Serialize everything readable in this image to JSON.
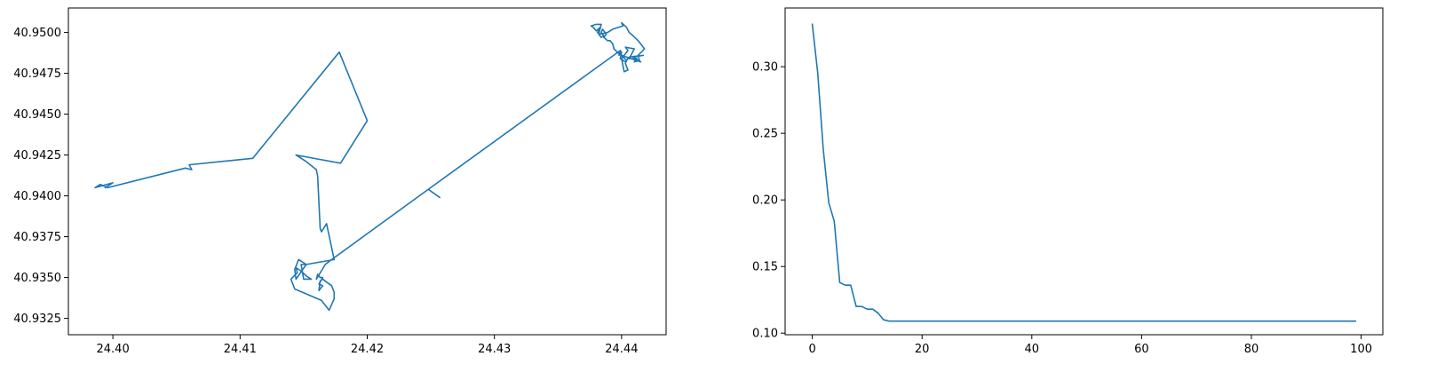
{
  "chart_data": [
    {
      "type": "line",
      "color": "#1f77b4",
      "xlim": [
        24.3965,
        24.4435
      ],
      "ylim": [
        40.9315,
        40.9515
      ],
      "xticks": [
        24.4,
        24.41,
        24.42,
        24.43,
        24.44
      ],
      "xtick_labels": [
        "24.40",
        "24.41",
        "24.42",
        "24.43",
        "24.44"
      ],
      "yticks": [
        40.9325,
        40.935,
        40.9375,
        40.94,
        40.9425,
        40.945,
        40.9475,
        40.95
      ],
      "ytick_labels": [
        "40.9325",
        "40.9350",
        "40.9375",
        "40.9400",
        "40.9425",
        "40.9450",
        "40.9475",
        "40.9500"
      ],
      "x": [
        24.4257,
        24.4248,
        24.4399,
        24.44,
        24.4415,
        24.4411,
        24.4406,
        24.441,
        24.4403,
        24.4405,
        24.44,
        24.4402,
        24.4405,
        24.4403,
        24.4404,
        24.4398,
        24.4394,
        24.4393,
        24.4391,
        24.4389,
        24.4386,
        24.4388,
        24.4385,
        24.4384,
        24.4386,
        24.4384,
        24.4382,
        24.4384,
        24.438,
        24.4376,
        24.4378,
        24.438,
        24.4383,
        24.4381,
        24.4383,
        24.4389,
        24.4393,
        24.4401,
        24.44,
        24.4404,
        24.4406,
        24.4409,
        24.4413,
        24.4418,
        24.4413,
        24.4414,
        24.441,
        24.4412,
        24.4409,
        24.4417,
        24.4406,
        24.4403,
        24.4399,
        24.44,
        24.4398,
        24.4399,
        24.4248,
        24.4172,
        24.4172,
        24.4167,
        24.416,
        24.4161,
        24.4163,
        24.4165,
        24.4162,
        24.4165,
        24.4162,
        24.4163,
        24.4165,
        24.4172,
        24.4174,
        24.4174,
        24.417,
        24.4164,
        24.4152,
        24.4143,
        24.414,
        24.4145,
        24.4144,
        24.4148,
        24.4152,
        24.4156,
        24.415,
        24.4148,
        24.4152,
        24.4146,
        24.4143,
        24.4144,
        24.4152,
        24.4174,
        24.4168,
        24.4164,
        24.4163,
        24.4161,
        24.416,
        24.4152,
        24.4144,
        24.4179,
        24.42,
        24.4178,
        24.411,
        24.406,
        24.4062,
        24.4057,
        24.3996,
        24.399,
        24.3986,
        24.4,
        24.3994
      ],
      "y": [
        40.9399,
        40.9404,
        40.9489,
        40.9486,
        40.9482,
        40.9484,
        40.9484,
        40.949,
        40.9491,
        40.9489,
        40.9484,
        40.9476,
        40.9477,
        40.9481,
        40.9483,
        40.9487,
        40.949,
        40.9493,
        40.9495,
        40.9495,
        40.9497,
        40.9499,
        40.9502,
        40.95,
        40.9498,
        40.9497,
        40.9499,
        40.9505,
        40.9505,
        40.9504,
        40.9503,
        40.9501,
        40.9503,
        40.95,
        40.9499,
        40.95,
        40.9502,
        40.9504,
        40.9506,
        40.9503,
        40.95,
        40.9498,
        40.9495,
        40.949,
        40.9486,
        40.9483,
        40.9482,
        40.9484,
        40.9485,
        40.9486,
        40.9485,
        40.9482,
        40.9484,
        40.9488,
        40.9486,
        40.9489,
        40.9404,
        40.9361,
        40.9361,
        40.9358,
        40.9349,
        40.9352,
        40.935,
        40.935,
        40.9346,
        40.9345,
        40.9342,
        40.9348,
        40.9349,
        40.9345,
        40.9341,
        40.9337,
        40.933,
        40.9336,
        40.934,
        40.9343,
        40.9349,
        40.9353,
        40.9356,
        40.9354,
        40.9351,
        40.9349,
        40.9349,
        40.9358,
        40.9358,
        40.9361,
        40.9355,
        40.9349,
        40.9358,
        40.9361,
        40.9383,
        40.9378,
        40.938,
        40.9412,
        40.9416,
        40.9421,
        40.9425,
        40.942,
        40.9446,
        40.9488,
        40.9423,
        40.9419,
        40.9416,
        40.9417,
        40.9405,
        40.9407,
        40.9405,
        40.9408,
        40.9405
      ]
    },
    {
      "type": "line",
      "color": "#1f77b4",
      "xlim": [
        -4.95,
        103.95
      ],
      "ylim": [
        0.0988,
        0.3441
      ],
      "xticks": [
        0,
        20,
        40,
        60,
        80,
        100
      ],
      "xtick_labels": [
        "0",
        "20",
        "40",
        "60",
        "80",
        "100"
      ],
      "yticks": [
        0.1,
        0.15,
        0.2,
        0.25,
        0.3
      ],
      "ytick_labels": [
        "0.10",
        "0.15",
        "0.20",
        "0.25",
        "0.30"
      ],
      "x": [
        0,
        1,
        2,
        3,
        4,
        5,
        6,
        7,
        8,
        9,
        10,
        11,
        12,
        13,
        14,
        15,
        20,
        30,
        40,
        50,
        60,
        70,
        80,
        90,
        99
      ],
      "y": [
        0.332,
        0.295,
        0.238,
        0.198,
        0.184,
        0.138,
        0.136,
        0.136,
        0.12,
        0.12,
        0.118,
        0.118,
        0.115,
        0.11,
        0.109,
        0.109,
        0.109,
        0.109,
        0.109,
        0.109,
        0.109,
        0.109,
        0.109,
        0.109,
        0.109
      ]
    }
  ]
}
